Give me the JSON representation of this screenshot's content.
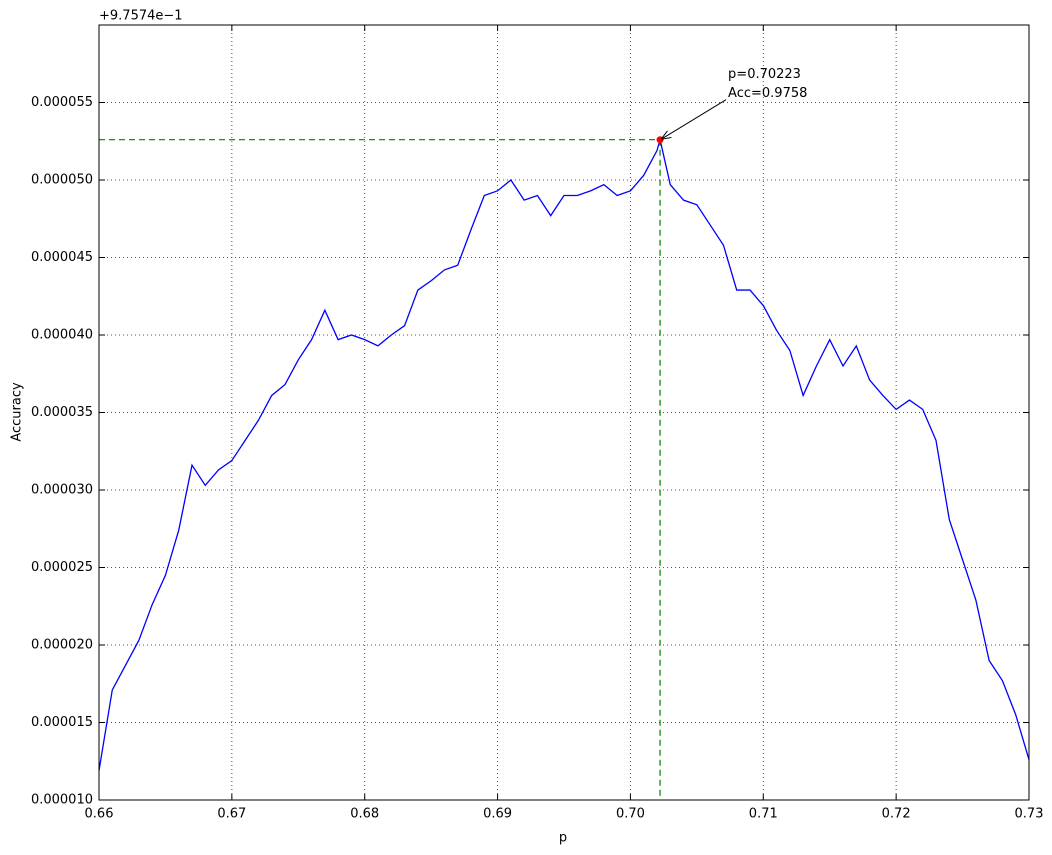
{
  "chart_data": {
    "type": "line",
    "xlabel": "p",
    "ylabel": "Accuracy",
    "y_offset_text": "+9.7574e−1",
    "xlim": [
      0.66,
      0.73
    ],
    "ylim": [
      1e-05,
      6e-05
    ],
    "xticks": [
      0.66,
      0.67,
      0.68,
      0.69,
      {
        "value": 0.7,
        "label": "0.70"
      },
      0.71,
      0.72,
      0.73
    ],
    "yticks": [
      {
        "value": 1e-05,
        "label": "0.000010"
      },
      {
        "value": 1.5e-05,
        "label": "0.000015"
      },
      {
        "value": 2e-05,
        "label": "0.000020"
      },
      {
        "value": 2.5e-05,
        "label": "0.000025"
      },
      {
        "value": 3e-05,
        "label": "0.000030"
      },
      {
        "value": 3.5e-05,
        "label": "0.000035"
      },
      {
        "value": 4e-05,
        "label": "0.000040"
      },
      {
        "value": 4.5e-05,
        "label": "0.000045"
      },
      {
        "value": 5e-05,
        "label": "0.000050"
      },
      {
        "value": 5.5e-05,
        "label": "0.000055"
      }
    ],
    "grid": true,
    "x": [
      0.66,
      0.661,
      0.662,
      0.663,
      0.664,
      0.665,
      0.666,
      0.667,
      0.668,
      0.669,
      0.67,
      0.671,
      0.672,
      0.673,
      0.674,
      0.675,
      0.676,
      0.677,
      0.678,
      0.679,
      0.68,
      0.681,
      0.682,
      0.683,
      0.684,
      0.685,
      0.686,
      0.687,
      0.688,
      0.689,
      0.69,
      0.691,
      0.692,
      0.693,
      0.694,
      0.695,
      0.696,
      0.697,
      0.698,
      0.699,
      0.7,
      0.701,
      0.702,
      0.70223,
      0.703,
      0.704,
      0.705,
      0.706,
      0.707,
      0.708,
      0.709,
      0.71,
      0.711,
      0.712,
      0.713,
      0.714,
      0.715,
      0.716,
      0.717,
      0.718,
      0.719,
      0.72,
      0.721,
      0.722,
      0.723,
      0.724,
      0.725,
      0.726,
      0.727,
      0.728,
      0.729,
      0.73
    ],
    "series": [
      {
        "name": "Accuracy",
        "color": "#0000ff",
        "values": [
          1.19e-05,
          1.71e-05,
          1.87e-05,
          2.03e-05,
          2.26e-05,
          2.45e-05,
          2.74e-05,
          3.16e-05,
          3.03e-05,
          3.13e-05,
          3.19e-05,
          3.32e-05,
          3.45e-05,
          3.61e-05,
          3.68e-05,
          3.84e-05,
          3.97e-05,
          4.16e-05,
          3.97e-05,
          4e-05,
          3.97e-05,
          3.93e-05,
          4e-05,
          4.06e-05,
          4.29e-05,
          4.35e-05,
          4.42e-05,
          4.45e-05,
          4.68e-05,
          4.9e-05,
          4.93e-05,
          5e-05,
          4.87e-05,
          4.9e-05,
          4.77e-05,
          4.9e-05,
          4.9e-05,
          4.93e-05,
          4.97e-05,
          4.9e-05,
          4.93e-05,
          5.03e-05,
          5.19e-05,
          5.26e-05,
          4.97e-05,
          4.87e-05,
          4.84e-05,
          4.71e-05,
          4.58e-05,
          4.29e-05,
          4.29e-05,
          4.19e-05,
          4.03e-05,
          3.9e-05,
          3.61e-05,
          3.8e-05,
          3.97e-05,
          3.8e-05,
          3.93e-05,
          3.71e-05,
          3.61e-05,
          3.52e-05,
          3.58e-05,
          3.52e-05,
          3.32e-05,
          2.81e-05,
          2.55e-05,
          2.29e-05,
          1.9e-05,
          1.77e-05,
          1.55e-05,
          1.26e-05
        ]
      }
    ],
    "highlight": {
      "x": 0.70223,
      "y": 5.26e-05,
      "color": "#ff0000",
      "guide_color": "#008000"
    },
    "annotation": [
      "p=0.70223",
      "Acc=0.9758"
    ]
  }
}
